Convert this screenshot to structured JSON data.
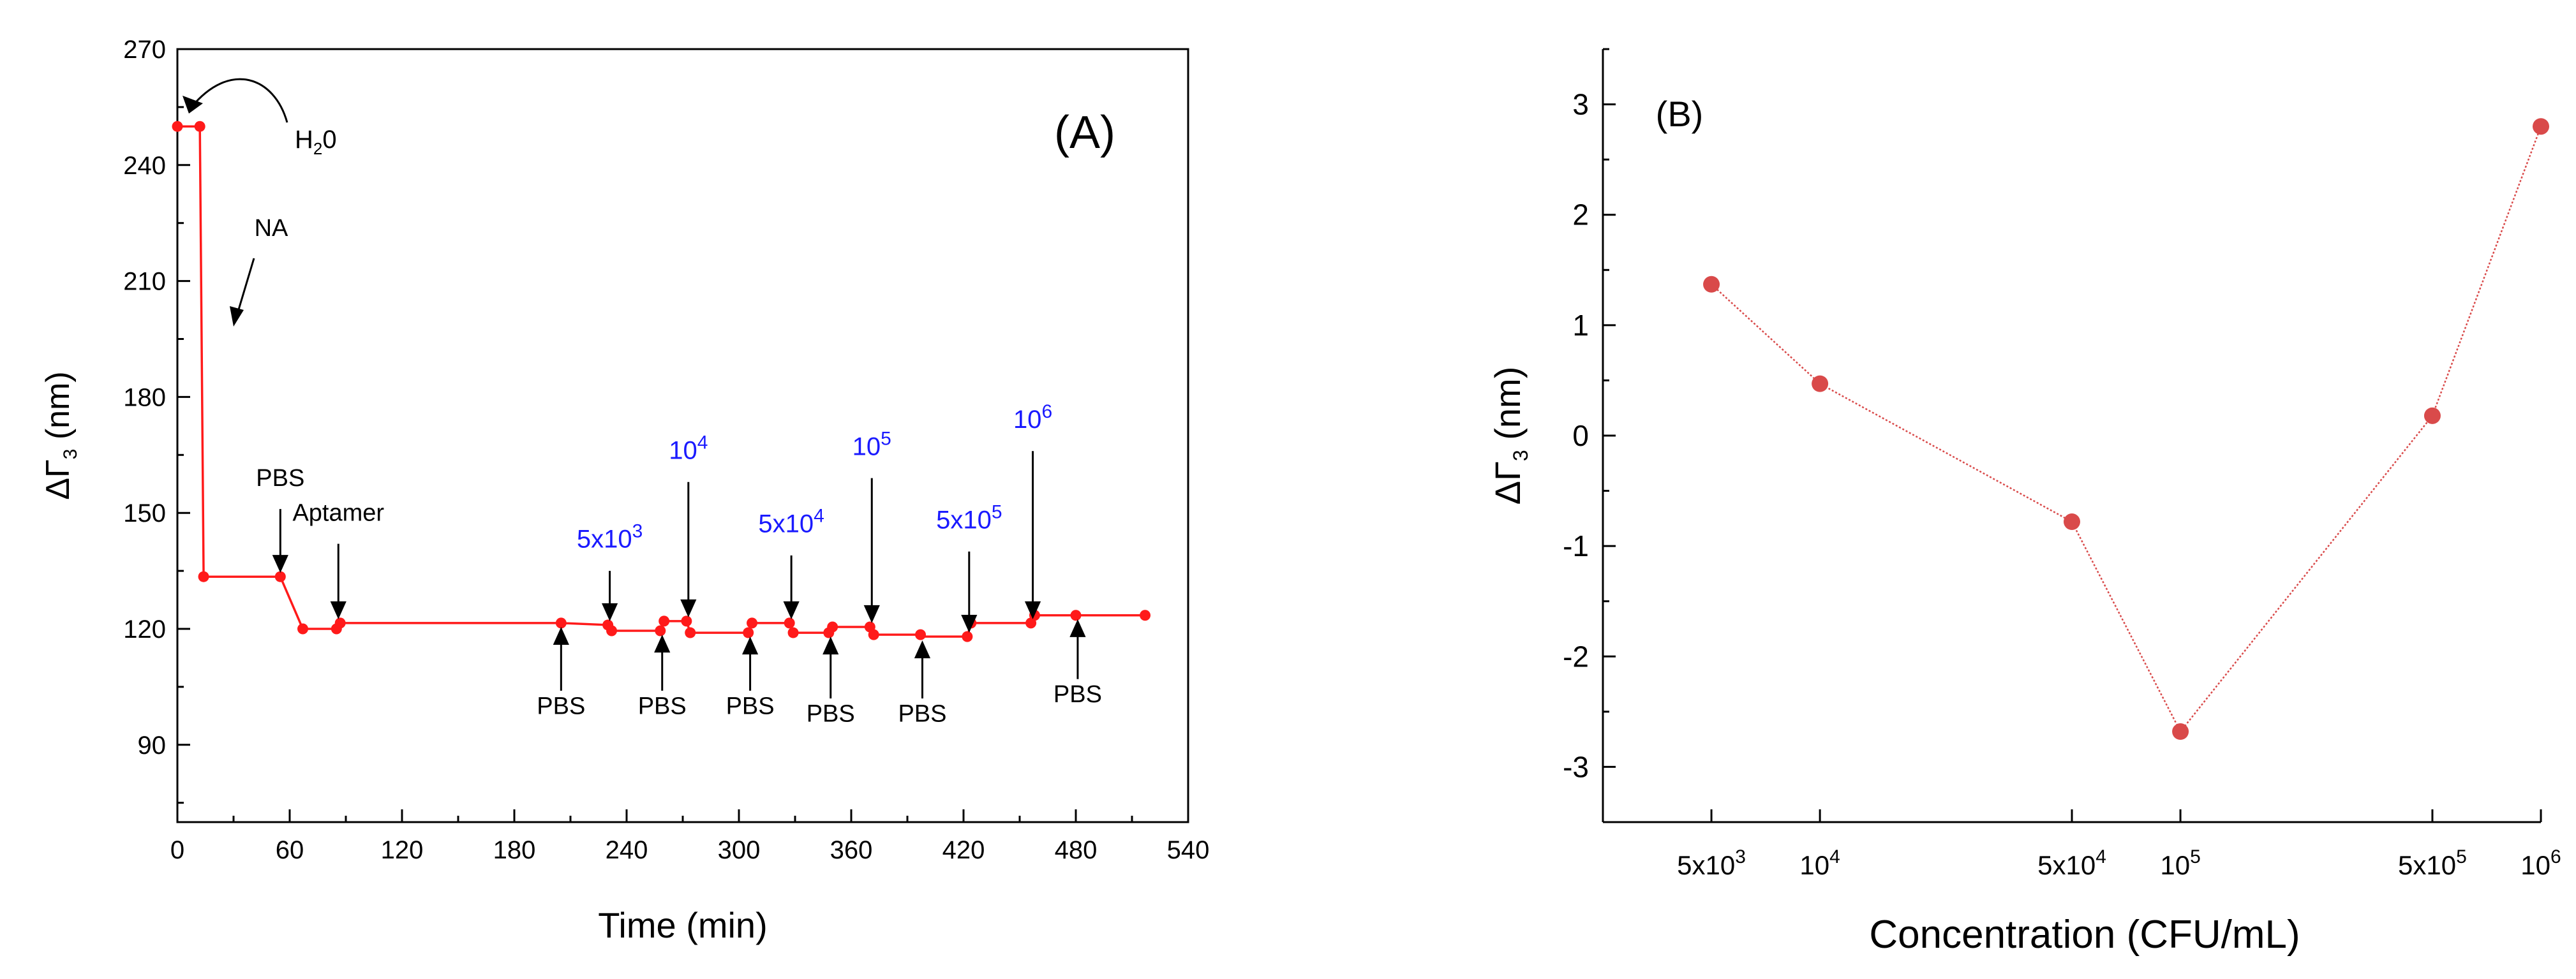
{
  "colors": {
    "series_a": "#ff1a1a",
    "series_b": "#d94a4a",
    "annotation_blue": "#1a1aff",
    "axis": "#000000"
  },
  "chart_data": [
    {
      "type": "line",
      "panel_label": "(A)",
      "xlabel": "Time (min)",
      "ylabel": {
        "base": "ΔΓ",
        "sub": "3",
        "unit": " (nm)"
      },
      "xlim": [
        0,
        540
      ],
      "ylim": [
        70,
        270
      ],
      "xticks": [
        0,
        60,
        120,
        180,
        240,
        300,
        360,
        420,
        480,
        540
      ],
      "yticks": [
        90,
        120,
        150,
        180,
        210,
        240,
        270
      ],
      "x_minor_step": 30,
      "y_minor_step": 15,
      "series": [
        {
          "points": [
            [
              0,
              250
            ],
            [
              12,
              250
            ],
            [
              14,
              133.5
            ],
            [
              55,
              133.5
            ],
            [
              67,
              120
            ],
            [
              85,
              120
            ],
            [
              87,
              121.5
            ],
            [
              205,
              121.5
            ],
            [
              230,
              121
            ],
            [
              232,
              119.5
            ],
            [
              258,
              119.5
            ],
            [
              260,
              122
            ],
            [
              272,
              122
            ],
            [
              274,
              119
            ],
            [
              305,
              119
            ],
            [
              307,
              121.5
            ],
            [
              327,
              121.5
            ],
            [
              329,
              119
            ],
            [
              348,
              119
            ],
            [
              350,
              120.5
            ],
            [
              370,
              120.5
            ],
            [
              372,
              118.5
            ],
            [
              397,
              118.5
            ],
            [
              399,
              118
            ],
            [
              422,
              118
            ],
            [
              424,
              121.5
            ],
            [
              456,
              121.5
            ],
            [
              458,
              123.5
            ],
            [
              480,
              123.5
            ],
            [
              517,
              123.5
            ]
          ],
          "markers": [
            [
              0,
              250
            ],
            [
              12,
              250
            ],
            [
              14,
              133.5
            ],
            [
              55,
              133.5
            ],
            [
              67,
              120
            ],
            [
              85,
              120
            ],
            [
              87,
              121.5
            ],
            [
              205,
              121.5
            ],
            [
              230,
              121
            ],
            [
              232,
              119.5
            ],
            [
              258,
              119.5
            ],
            [
              260,
              122
            ],
            [
              272,
              122
            ],
            [
              274,
              119
            ],
            [
              305,
              119
            ],
            [
              307,
              121.5
            ],
            [
              327,
              121.5
            ],
            [
              329,
              119
            ],
            [
              348,
              119
            ],
            [
              350,
              120.5
            ],
            [
              370,
              120.5
            ],
            [
              372,
              118.5
            ],
            [
              397,
              118.5
            ],
            [
              422,
              118
            ],
            [
              424,
              121.5
            ],
            [
              456,
              121.5
            ],
            [
              458,
              123.5
            ],
            [
              480,
              123.5
            ],
            [
              517,
              123.5
            ]
          ]
        }
      ],
      "annotations": {
        "h2o": {
          "base": "H",
          "sub": "2",
          "tail": "0"
        },
        "na": "NA",
        "labels_top_black": [
          {
            "text": "PBS",
            "x": 55,
            "y_text": 157,
            "y_from": 151,
            "y_to": 134.5
          },
          {
            "text": "Aptamer",
            "x": 86,
            "y_text": 148,
            "y_from": 142,
            "y_to": 122.5
          }
        ],
        "labels_top_blue": [
          {
            "base": "5x10",
            "exp": "3",
            "x": 231,
            "y_text": 141,
            "y_from": 135,
            "y_to": 122
          },
          {
            "base": "10",
            "exp": "4",
            "x": 273,
            "y_text": 164,
            "y_from": 158,
            "y_to": 123
          },
          {
            "base": "5x10",
            "exp": "4",
            "x": 328,
            "y_text": 145,
            "y_from": 139,
            "y_to": 122.5
          },
          {
            "base": "10",
            "exp": "5",
            "x": 371,
            "y_text": 165,
            "y_from": 159,
            "y_to": 121.5
          },
          {
            "base": "5x10",
            "exp": "5",
            "x": 423,
            "y_text": 146,
            "y_from": 140,
            "y_to": 119
          },
          {
            "base": "10",
            "exp": "6",
            "x": 457,
            "y_text": 172,
            "y_from": 166,
            "y_to": 122.5
          }
        ],
        "labels_bottom": [
          {
            "text": "PBS",
            "x": 205,
            "y_text": 98,
            "y_from": 104,
            "y_to": 120.5
          },
          {
            "text": "PBS",
            "x": 259,
            "y_text": 98,
            "y_from": 104,
            "y_to": 118.5
          },
          {
            "text": "PBS",
            "x": 306,
            "y_text": 98,
            "y_from": 104,
            "y_to": 118
          },
          {
            "text": "PBS",
            "x": 349,
            "y_text": 96,
            "y_from": 102,
            "y_to": 118
          },
          {
            "text": "PBS",
            "x": 398,
            "y_text": 96,
            "y_from": 102,
            "y_to": 117
          },
          {
            "text": "PBS",
            "x": 481,
            "y_text": 101,
            "y_from": 107,
            "y_to": 122.5
          }
        ]
      }
    },
    {
      "type": "line",
      "panel_label": "(B)",
      "xlabel": "Concentration (CFU/mL)",
      "ylabel": {
        "base": "ΔΓ",
        "sub": "3",
        "unit": " (nm)"
      },
      "xscale": "log",
      "xlim": [
        2500,
        1000000
      ],
      "ylim": [
        -3.5,
        3.5
      ],
      "yticks": [
        -3,
        -2,
        -1,
        0,
        1,
        2,
        3
      ],
      "xticks": [
        {
          "value": 5000,
          "base": "5x10",
          "exp": "3"
        },
        {
          "value": 10000,
          "base": "10",
          "exp": "4"
        },
        {
          "value": 50000,
          "base": "5x10",
          "exp": "4"
        },
        {
          "value": 100000,
          "base": "10",
          "exp": "5"
        },
        {
          "value": 500000,
          "base": "5x10",
          "exp": "5"
        },
        {
          "value": 1000000,
          "base": "10",
          "exp": "6"
        }
      ],
      "series": [
        {
          "x": [
            5000,
            10000,
            50000,
            100000,
            500000,
            1000000
          ],
          "y": [
            1.37,
            0.47,
            -0.78,
            -2.68,
            0.18,
            2.8
          ]
        }
      ]
    }
  ]
}
